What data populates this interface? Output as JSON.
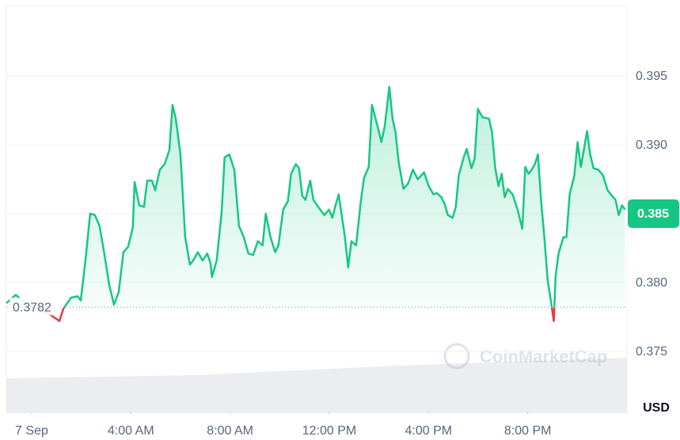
{
  "chart_data": {
    "type": "line",
    "x": [
      -1.02,
      -0.64,
      -0.32,
      0.16,
      0.64,
      1.12,
      1.28,
      1.59,
      1.85,
      1.98,
      2.17,
      2.36,
      2.55,
      2.74,
      2.93,
      3.13,
      3.32,
      3.51,
      3.7,
      3.89,
      4.08,
      4.15,
      4.34,
      4.53,
      4.66,
      4.85,
      4.98,
      5.17,
      5.36,
      5.55,
      5.68,
      5.81,
      6.0,
      6.19,
      6.38,
      6.51,
      6.7,
      6.89,
      7.08,
      7.21,
      7.27,
      7.46,
      7.66,
      7.78,
      7.97,
      8.17,
      8.36,
      8.55,
      8.74,
      8.93,
      9.12,
      9.31,
      9.44,
      9.63,
      9.82,
      9.95,
      10.14,
      10.33,
      10.46,
      10.65,
      10.78,
      10.91,
      11.04,
      11.23,
      11.36,
      11.55,
      11.67,
      11.8,
      11.99,
      12.12,
      12.25,
      12.38,
      12.5,
      12.63,
      12.76,
      12.89,
      13.08,
      13.27,
      13.4,
      13.59,
      13.72,
      13.91,
      14.1,
      14.23,
      14.42,
      14.55,
      14.67,
      14.8,
      14.99,
      15.18,
      15.37,
      15.57,
      15.82,
      16.01,
      16.2,
      16.33,
      16.52,
      16.65,
      16.78,
      16.97,
      17.1,
      17.22,
      17.42,
      17.54,
      17.73,
      17.86,
      17.99,
      18.18,
      18.44,
      18.56,
      18.69,
      18.82,
      18.95,
      19.07,
      19.2,
      19.39,
      19.59,
      19.78,
      19.9,
      20.03,
      20.16,
      20.29,
      20.41,
      20.54,
      20.67,
      20.8,
      20.93,
      21.05,
      21.12,
      21.24,
      21.44,
      21.56,
      21.69,
      21.88,
      22.01,
      22.14,
      22.26,
      22.39,
      22.52,
      22.65,
      22.84,
      23.03,
      23.22,
      23.35,
      23.54,
      23.67,
      23.8,
      23.92
    ],
    "series": [
      {
        "color": "#16c784",
        "values": [
          0.3785,
          0.3791,
          0.3786,
          0.3781,
          0.3778,
          0.3772,
          0.3781,
          0.3789,
          0.379,
          0.3787,
          0.3816,
          0.385,
          0.3849,
          0.3841,
          0.3821,
          0.3798,
          0.3784,
          0.3793,
          0.3822,
          0.3826,
          0.384,
          0.3873,
          0.3856,
          0.3855,
          0.3874,
          0.3874,
          0.3867,
          0.3882,
          0.3886,
          0.3896,
          0.3929,
          0.3919,
          0.3893,
          0.3833,
          0.3813,
          0.3816,
          0.3822,
          0.3816,
          0.3821,
          0.3814,
          0.3804,
          0.3816,
          0.3851,
          0.3891,
          0.3893,
          0.3882,
          0.3841,
          0.3833,
          0.3821,
          0.382,
          0.383,
          0.3827,
          0.385,
          0.3833,
          0.3822,
          0.3827,
          0.3853,
          0.3859,
          0.3879,
          0.3886,
          0.3883,
          0.3863,
          0.386,
          0.3874,
          0.386,
          0.3855,
          0.3852,
          0.3849,
          0.3853,
          0.3847,
          0.3856,
          0.3864,
          0.3849,
          0.3833,
          0.3811,
          0.383,
          0.3827,
          0.3859,
          0.3876,
          0.3884,
          0.3929,
          0.3916,
          0.3902,
          0.3913,
          0.3942,
          0.3919,
          0.3909,
          0.3887,
          0.3868,
          0.3872,
          0.3882,
          0.3875,
          0.388,
          0.387,
          0.3864,
          0.3865,
          0.3862,
          0.3857,
          0.3849,
          0.3847,
          0.3855,
          0.3878,
          0.3891,
          0.3897,
          0.3883,
          0.389,
          0.3926,
          0.392,
          0.3919,
          0.3909,
          0.3883,
          0.387,
          0.3879,
          0.3862,
          0.3868,
          0.3864,
          0.3853,
          0.3839,
          0.3884,
          0.3879,
          0.3882,
          0.3886,
          0.3893,
          0.3859,
          0.3833,
          0.3802,
          0.3787,
          0.3772,
          0.3804,
          0.3821,
          0.3833,
          0.3833,
          0.3864,
          0.3878,
          0.3902,
          0.3884,
          0.3896,
          0.391,
          0.3893,
          0.3883,
          0.3882,
          0.3878,
          0.3867,
          0.3864,
          0.386,
          0.3849,
          0.3856,
          0.3853
        ]
      }
    ],
    "down_color": "#ea3943",
    "baseline": 0.3782,
    "current_price": 0.385,
    "xlim": [
      -1.02,
      24
    ],
    "xticks": [
      {
        "value": 0,
        "label": "7 Sep"
      },
      {
        "value": 4,
        "label": "4:00 AM"
      },
      {
        "value": 8,
        "label": "8:00 AM"
      },
      {
        "value": 12,
        "label": "12:00 PM"
      },
      {
        "value": 16,
        "label": "4:00 PM"
      },
      {
        "value": 20,
        "label": "8:00 PM"
      }
    ],
    "ylim": [
      0.37063,
      0.40006
    ],
    "yticks": [
      0.375,
      {
        "value": 0.38,
        "label": "0.380"
      },
      0.385,
      {
        "value": 0.39,
        "label": "0.390"
      },
      0.395
    ],
    "y_unit": "USD",
    "watermark": "CoinMarketCap",
    "grid": true
  }
}
